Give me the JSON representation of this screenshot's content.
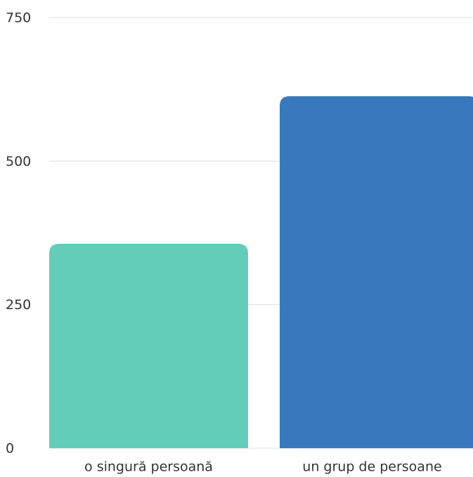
{
  "chart_data": {
    "type": "bar",
    "categories": [
      "o singură persoană",
      "un grup de persoane"
    ],
    "values": [
      356,
      613
    ],
    "colors": [
      "#64cdb9",
      "#3878bd"
    ],
    "ylim": [
      0,
      750
    ],
    "yticks": [
      0,
      250,
      500,
      750
    ],
    "grid": true
  }
}
